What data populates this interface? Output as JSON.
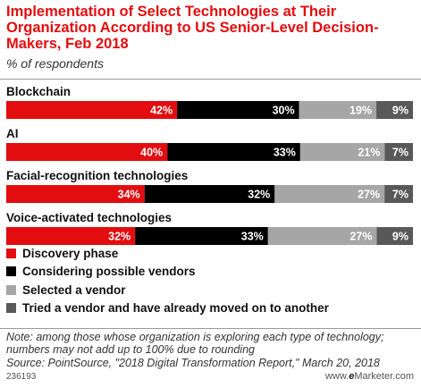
{
  "header": {
    "title": "Implementation of Select Technologies at Their Organization According to US Senior-Level Decision-Makers, Feb 2018",
    "subtitle": "% of respondents"
  },
  "chart_data": {
    "type": "bar",
    "orientation": "horizontal",
    "stacked": true,
    "categories": [
      "Blockchain",
      "AI",
      "Facial-recognition technologies",
      "Voice-activated technologies"
    ],
    "series": [
      {
        "name": "Discovery phase",
        "values": [
          42,
          40,
          34,
          32
        ],
        "color": "#e30d0f"
      },
      {
        "name": "Considering possible vendors",
        "values": [
          30,
          33,
          32,
          33
        ],
        "color": "#000000"
      },
      {
        "name": "Selected a vendor",
        "values": [
          19,
          21,
          27,
          27
        ],
        "color": "#a6a6a6"
      },
      {
        "name": "Tried a vendor and have already moved on to another",
        "values": [
          9,
          7,
          7,
          9
        ],
        "color": "#595959"
      }
    ],
    "value_suffix": "%",
    "legend_position": "bottom-left"
  },
  "footer": {
    "note": "Note: among those whose organization is exploring each type of technology; numbers may not add up to 100% due to rounding",
    "source": "Source: PointSource, \"2018 Digital Transformation Report,\" March 20, 2018",
    "chart_id": "236193",
    "brand_prefix": "www.",
    "brand_e": "e",
    "brand_rest": "Marketer.com"
  }
}
